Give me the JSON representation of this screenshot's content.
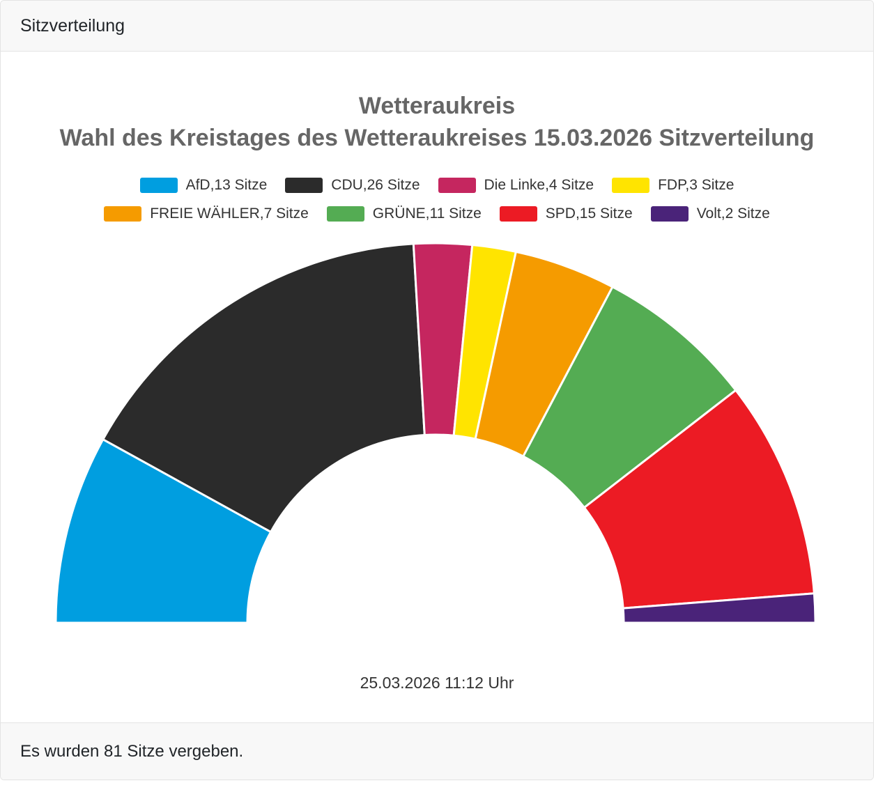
{
  "header": {
    "title": "Sitzverteilung"
  },
  "footer": {
    "text": "Es wurden 81 Sitze vergeben."
  },
  "chart_data": {
    "type": "pie",
    "variant": "half-donut",
    "title": "Wetteraukreis",
    "subtitle": "Wahl des Kreistages des Wetteraukreises 15.03.2026 Sitzverteilung",
    "timestamp": "25.03.2026 11:12 Uhr",
    "total_seats": 81,
    "unit": "Sitze",
    "legend_position": "top",
    "inner_radius_pct": 50,
    "start_angle_deg": -90,
    "end_angle_deg": 90,
    "series": [
      {
        "party": "AfD",
        "seats": 13,
        "label": "AfD,13 Sitze",
        "color": "#009EE0"
      },
      {
        "party": "CDU",
        "seats": 26,
        "label": "CDU,26 Sitze",
        "color": "#2B2B2B"
      },
      {
        "party": "Die Linke",
        "seats": 4,
        "label": "Die Linke,4 Sitze",
        "color": "#C5265F"
      },
      {
        "party": "FDP",
        "seats": 3,
        "label": "FDP,3 Sitze",
        "color": "#FFE400"
      },
      {
        "party": "FREIE WÄHLER",
        "seats": 7,
        "label": "FREIE WÄHLER,7 Sitze",
        "color": "#F59B00"
      },
      {
        "party": "GRÜNE",
        "seats": 11,
        "label": "GRÜNE,11 Sitze",
        "color": "#54AC53"
      },
      {
        "party": "SPD",
        "seats": 15,
        "label": "SPD,15 Sitze",
        "color": "#EC1B24"
      },
      {
        "party": "Volt",
        "seats": 2,
        "label": "Volt,2 Sitze",
        "color": "#4A2379"
      }
    ],
    "legend_rows": [
      4,
      4
    ]
  }
}
